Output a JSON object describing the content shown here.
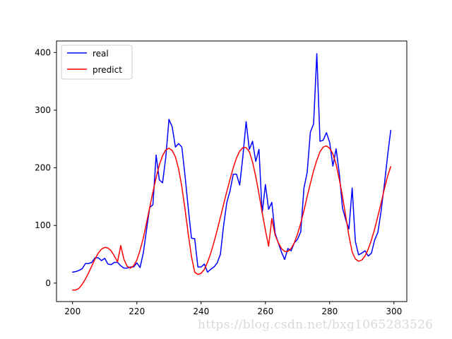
{
  "watermark": "https://blog.csdn.net/bxg1065283526",
  "chart_data": {
    "type": "line",
    "title": "",
    "xlabel": "",
    "ylabel": "",
    "xlim": [
      195,
      304
    ],
    "ylim": [
      -32,
      420
    ],
    "xticks": [
      200,
      220,
      240,
      260,
      280,
      300
    ],
    "yticks": [
      0,
      100,
      200,
      300,
      400
    ],
    "grid": false,
    "legend": {
      "placement": "top-left",
      "entries": [
        "real",
        "predict"
      ]
    },
    "series": [
      {
        "name": "real",
        "color": "#0000ff",
        "x": [
          200,
          201,
          202,
          203,
          204,
          205,
          206,
          207,
          208,
          209,
          210,
          211,
          212,
          213,
          214,
          215,
          216,
          217,
          218,
          219,
          220,
          221,
          222,
          223,
          224,
          225,
          226,
          227,
          228,
          229,
          230,
          231,
          232,
          233,
          234,
          235,
          236,
          237,
          238,
          239,
          240,
          241,
          242,
          243,
          244,
          245,
          246,
          247,
          248,
          249,
          250,
          251,
          252,
          253,
          254,
          255,
          256,
          257,
          258,
          259,
          260,
          261,
          262,
          263,
          264,
          265,
          266,
          267,
          268,
          269,
          270,
          271,
          272,
          273,
          274,
          275,
          276,
          277,
          278,
          279,
          280,
          281,
          282,
          283,
          284,
          285,
          286,
          287,
          288,
          289,
          290,
          291,
          292,
          293,
          294,
          295,
          296,
          297,
          298,
          299
        ],
        "y": [
          19,
          20,
          22,
          25,
          34,
          34,
          36,
          44,
          44,
          39,
          43,
          33,
          32,
          36,
          36,
          30,
          26,
          26,
          28,
          28,
          35,
          27,
          52,
          92,
          131,
          136,
          222,
          179,
          174,
          218,
          284,
          271,
          236,
          242,
          236,
          186,
          130,
          78,
          77,
          28,
          28,
          33,
          19,
          24,
          28,
          35,
          50,
          100,
          140,
          160,
          189,
          189,
          170,
          220,
          280,
          232,
          246,
          211,
          232,
          121,
          171,
          128,
          140,
          87,
          70,
          54,
          41,
          60,
          56,
          70,
          76,
          89,
          165,
          192,
          262,
          276,
          398,
          246,
          248,
          261,
          244,
          203,
          233,
          190,
          130,
          110,
          94,
          165,
          72,
          49,
          52,
          56,
          47,
          52,
          75,
          88,
          125,
          170,
          220,
          265
        ]
      },
      {
        "name": "predict",
        "color": "#ff0000",
        "x": [
          200,
          201,
          202,
          203,
          204,
          205,
          206,
          207,
          208,
          209,
          210,
          211,
          212,
          213,
          214,
          215,
          216,
          217,
          218,
          219,
          220,
          221,
          222,
          223,
          224,
          225,
          226,
          227,
          228,
          229,
          230,
          231,
          232,
          233,
          234,
          235,
          236,
          237,
          238,
          239,
          240,
          241,
          242,
          243,
          244,
          245,
          246,
          247,
          248,
          249,
          250,
          251,
          252,
          253,
          254,
          255,
          256,
          257,
          258,
          259,
          260,
          261,
          262,
          263,
          264,
          265,
          266,
          267,
          268,
          269,
          270,
          271,
          272,
          273,
          274,
          275,
          276,
          277,
          278,
          279,
          280,
          281,
          282,
          283,
          284,
          285,
          286,
          287,
          288,
          289,
          290,
          291,
          292,
          293,
          294,
          295,
          296,
          297,
          298,
          299
        ],
        "y": [
          -12,
          -12,
          -9,
          -2,
          7,
          18,
          30,
          42,
          52,
          59,
          62,
          61,
          56,
          47,
          37,
          65,
          41,
          29,
          26,
          30,
          40,
          57,
          78,
          104,
          131,
          158,
          183,
          205,
          221,
          231,
          234,
          230,
          219,
          198,
          167,
          128,
          85,
          46,
          19,
          15,
          17,
          24,
          36,
          52,
          71,
          92,
          114,
          137,
          159,
          180,
          200,
          217,
          229,
          235,
          235,
          228,
          210,
          185,
          155,
          122,
          92,
          64,
          112,
          84,
          70,
          60,
          55,
          55,
          60,
          70,
          85,
          104,
          126,
          150,
          173,
          195,
          213,
          228,
          236,
          238,
          234,
          224,
          206,
          180,
          150,
          116,
          82,
          54,
          42,
          38,
          40,
          47,
          59,
          75,
          94,
          116,
          139,
          163,
          185,
          202
        ]
      }
    ]
  }
}
